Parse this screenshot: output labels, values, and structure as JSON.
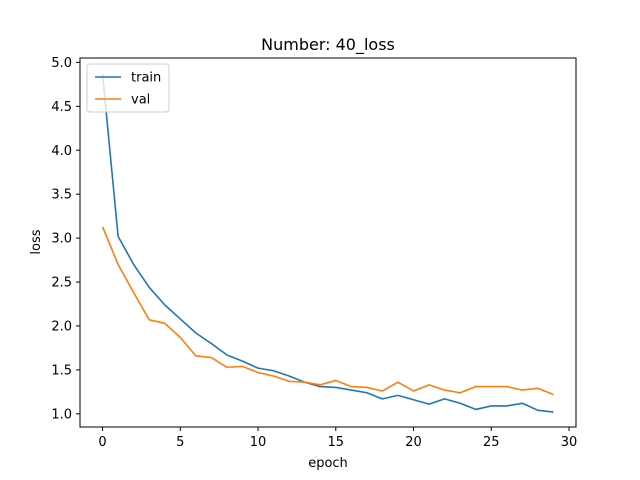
{
  "chart_data": {
    "type": "line",
    "title": "Number: 40_loss",
    "xlabel": "epoch",
    "ylabel": "loss",
    "xlim": [
      -1.45,
      30.45
    ],
    "ylim": [
      0.85,
      5.05
    ],
    "xticks": [
      0,
      5,
      10,
      15,
      20,
      25,
      30
    ],
    "xtick_labels": [
      "0",
      "5",
      "10",
      "15",
      "20",
      "25",
      "30"
    ],
    "yticks": [
      1.0,
      1.5,
      2.0,
      2.5,
      3.0,
      3.5,
      4.0,
      4.5,
      5.0
    ],
    "ytick_labels": [
      "1.0",
      "1.5",
      "2.0",
      "2.5",
      "3.0",
      "3.5",
      "4.0",
      "4.5",
      "5.0"
    ],
    "grid": false,
    "legend_position": "top-left",
    "x": [
      0,
      1,
      2,
      3,
      4,
      5,
      6,
      7,
      8,
      9,
      10,
      11,
      12,
      13,
      14,
      15,
      16,
      17,
      18,
      19,
      20,
      21,
      22,
      23,
      24,
      25,
      26,
      27,
      28,
      29
    ],
    "series": [
      {
        "name": "train",
        "color": "#1f77b4",
        "values": [
          4.87,
          3.02,
          2.7,
          2.44,
          2.24,
          2.08,
          1.92,
          1.8,
          1.67,
          1.6,
          1.52,
          1.49,
          1.43,
          1.36,
          1.31,
          1.3,
          1.27,
          1.24,
          1.17,
          1.21,
          1.16,
          1.11,
          1.17,
          1.12,
          1.05,
          1.09,
          1.09,
          1.12,
          1.04,
          1.02
        ]
      },
      {
        "name": "val",
        "color": "#ff7f0e",
        "values": [
          3.13,
          2.7,
          2.38,
          2.07,
          2.03,
          1.87,
          1.66,
          1.64,
          1.53,
          1.54,
          1.47,
          1.43,
          1.37,
          1.36,
          1.33,
          1.38,
          1.31,
          1.3,
          1.26,
          1.36,
          1.26,
          1.33,
          1.27,
          1.24,
          1.31,
          1.31,
          1.31,
          1.27,
          1.29,
          1.22
        ]
      }
    ]
  }
}
